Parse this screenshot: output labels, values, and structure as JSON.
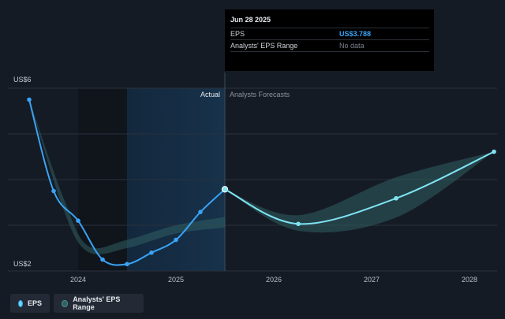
{
  "chart_data": {
    "type": "line",
    "title": "",
    "y_axis": {
      "ylim": [
        2,
        6
      ],
      "top_label": "US$6",
      "bottom_label": "US$2"
    },
    "x_axis": {
      "ticks": [
        {
          "label": "2024",
          "t": 2024.0
        },
        {
          "label": "2025",
          "t": 2025.0
        },
        {
          "label": "2026",
          "t": 2026.0
        },
        {
          "label": "2027",
          "t": 2027.0
        },
        {
          "label": "2028",
          "t": 2028.0
        }
      ]
    },
    "region_labels": {
      "actual": "Actual",
      "forecast": "Analysts Forecasts"
    },
    "highlight_range": [
      2024.5,
      2025.5
    ],
    "actual_shade_range": [
      2024.0,
      2024.5
    ],
    "divider_t": 2025.5,
    "series": [
      {
        "name": "EPS",
        "color": "#3aa3f5",
        "points": [
          {
            "t": 2023.5,
            "v": 5.75
          },
          {
            "t": 2023.75,
            "v": 3.75
          },
          {
            "t": 2024.0,
            "v": 3.1
          },
          {
            "t": 2024.25,
            "v": 2.25
          },
          {
            "t": 2024.5,
            "v": 2.15
          },
          {
            "t": 2024.75,
            "v": 2.4
          },
          {
            "t": 2025.0,
            "v": 2.68
          },
          {
            "t": 2025.25,
            "v": 3.29
          },
          {
            "t": 2025.5,
            "v": 3.788
          }
        ]
      },
      {
        "name": "EPS Forecast",
        "color": "#7fe3f3",
        "points": [
          {
            "t": 2025.5,
            "v": 3.788
          },
          {
            "t": 2026.25,
            "v": 3.03
          },
          {
            "t": 2027.25,
            "v": 3.59
          },
          {
            "t": 2028.25,
            "v": 4.61
          }
        ]
      }
    ],
    "range_band_past": {
      "upper": [
        {
          "t": 2023.5,
          "v": 5.75
        },
        {
          "t": 2023.85,
          "v": 3.6
        },
        {
          "t": 2024.1,
          "v": 2.55
        },
        {
          "t": 2024.5,
          "v": 2.68
        },
        {
          "t": 2025.0,
          "v": 3.0
        },
        {
          "t": 2025.5,
          "v": 3.18
        }
      ],
      "lower": [
        {
          "t": 2025.5,
          "v": 2.95
        },
        {
          "t": 2025.0,
          "v": 2.82
        },
        {
          "t": 2024.5,
          "v": 2.5
        },
        {
          "t": 2024.1,
          "v": 2.42
        },
        {
          "t": 2023.85,
          "v": 3.35
        },
        {
          "t": 2023.5,
          "v": 5.75
        }
      ]
    },
    "range_band_forecast": {
      "upper": [
        {
          "t": 2025.5,
          "v": 3.788
        },
        {
          "t": 2026.25,
          "v": 3.22
        },
        {
          "t": 2027.25,
          "v": 4.05
        },
        {
          "t": 2028.25,
          "v": 4.61
        }
      ],
      "lower": [
        {
          "t": 2028.25,
          "v": 4.61
        },
        {
          "t": 2027.25,
          "v": 3.17
        },
        {
          "t": 2026.25,
          "v": 2.88
        },
        {
          "t": 2025.5,
          "v": 3.788
        }
      ]
    },
    "band_color": "#2f5f62"
  },
  "tooltip": {
    "date": "Jun 28 2025",
    "rows": [
      {
        "label": "EPS",
        "value": "US$3.788"
      },
      {
        "label": "Analysts' EPS Range",
        "value": "No data"
      }
    ]
  },
  "legend": [
    {
      "label": "EPS"
    },
    {
      "label": "Analysts' EPS Range"
    }
  ]
}
